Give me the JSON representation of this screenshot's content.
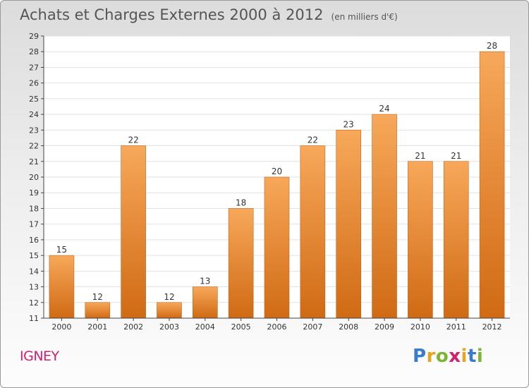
{
  "header": {
    "title": "Achats et Charges Externes 2000 à 2012",
    "unit": "(en milliers d'€)"
  },
  "footer": {
    "commune": "IGNEY",
    "logo": {
      "letters": [
        "P",
        "r",
        "o",
        "x",
        "i",
        "t",
        "i"
      ],
      "colors": [
        "#3a7cc9",
        "#e8a41c",
        "#7bb533",
        "#d4206a",
        "#e8a41c",
        "#3a7cc9",
        "#7bb533"
      ]
    }
  },
  "colors": {
    "bar_light": "#f7a85a",
    "bar_dark": "#d06a14",
    "grid": "#e2e2e2",
    "axis": "#444444",
    "text": "#333333"
  },
  "chart_data": {
    "type": "bar",
    "categories": [
      "2000",
      "2001",
      "2002",
      "2003",
      "2004",
      "2005",
      "2006",
      "2007",
      "2008",
      "2009",
      "2010",
      "2011",
      "2012"
    ],
    "values": [
      15,
      12,
      22,
      12,
      13,
      18,
      20,
      22,
      23,
      24,
      21,
      21,
      28
    ],
    "ylim": [
      11,
      29
    ],
    "yticks": [
      11,
      12,
      13,
      14,
      15,
      16,
      17,
      18,
      19,
      20,
      21,
      22,
      23,
      24,
      25,
      26,
      27,
      28,
      29
    ],
    "grid": true,
    "data_labels": true
  }
}
